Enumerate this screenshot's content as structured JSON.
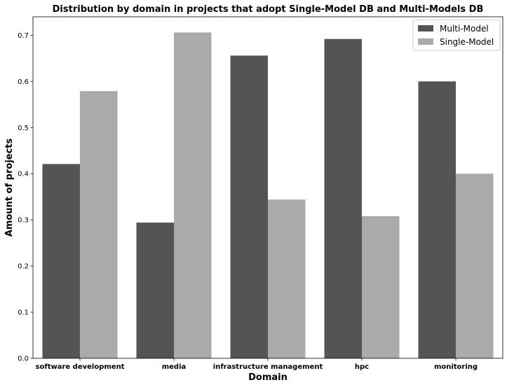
{
  "chart_data": {
    "type": "bar",
    "title": "Distribution by domain in projects that adopt Single-Model DB and Multi-Models DB",
    "xlabel": "Domain",
    "ylabel": "Amount of projects",
    "categories": [
      "software development",
      "media",
      "infrastructure management",
      "hpc",
      "monitoring"
    ],
    "series": [
      {
        "name": "Multi-Model",
        "color": "#545454",
        "values": [
          0.421,
          0.294,
          0.656,
          0.692,
          0.6
        ]
      },
      {
        "name": "Single-Model",
        "color": "#aaaaaa",
        "values": [
          0.579,
          0.706,
          0.344,
          0.308,
          0.4
        ]
      }
    ],
    "ylim": [
      0,
      0.74
    ],
    "yticks": [
      "0.0",
      "0.1",
      "0.2",
      "0.3",
      "0.4",
      "0.5",
      "0.6",
      "0.7"
    ],
    "grid": false,
    "legend_position": "top-right"
  }
}
